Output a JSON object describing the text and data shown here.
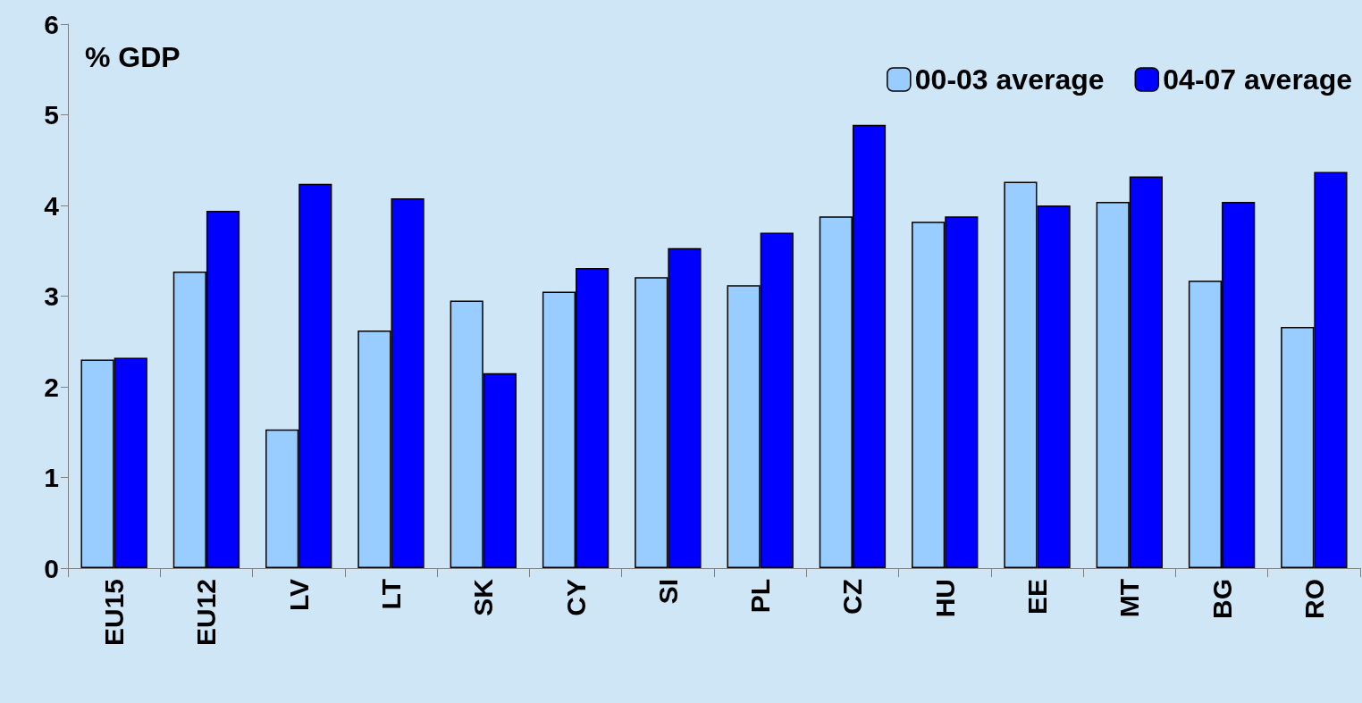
{
  "chart_data": {
    "type": "bar",
    "ylabel": "% GDP",
    "categories": [
      "EU15",
      "EU12",
      "LV",
      "LT",
      "SK",
      "CY",
      "SI",
      "PL",
      "CZ",
      "HU",
      "EE",
      "MT",
      "BG",
      "RO"
    ],
    "series": [
      {
        "name": "00-03 average",
        "color": "#99ccff",
        "values": [
          2.3,
          3.27,
          1.53,
          2.62,
          2.95,
          3.05,
          3.21,
          3.12,
          3.88,
          3.82,
          4.26,
          4.04,
          3.17,
          2.66
        ]
      },
      {
        "name": "04-07 average",
        "color": "#0000ff",
        "values": [
          2.32,
          3.94,
          4.24,
          4.08,
          2.15,
          3.31,
          3.53,
          3.7,
          4.89,
          3.88,
          4.0,
          4.32,
          4.04,
          4.37
        ]
      }
    ],
    "ylim": [
      0,
      6
    ],
    "yticks": [
      0,
      1,
      2,
      3,
      4,
      5,
      6
    ],
    "grid": false,
    "legend": "top right"
  }
}
